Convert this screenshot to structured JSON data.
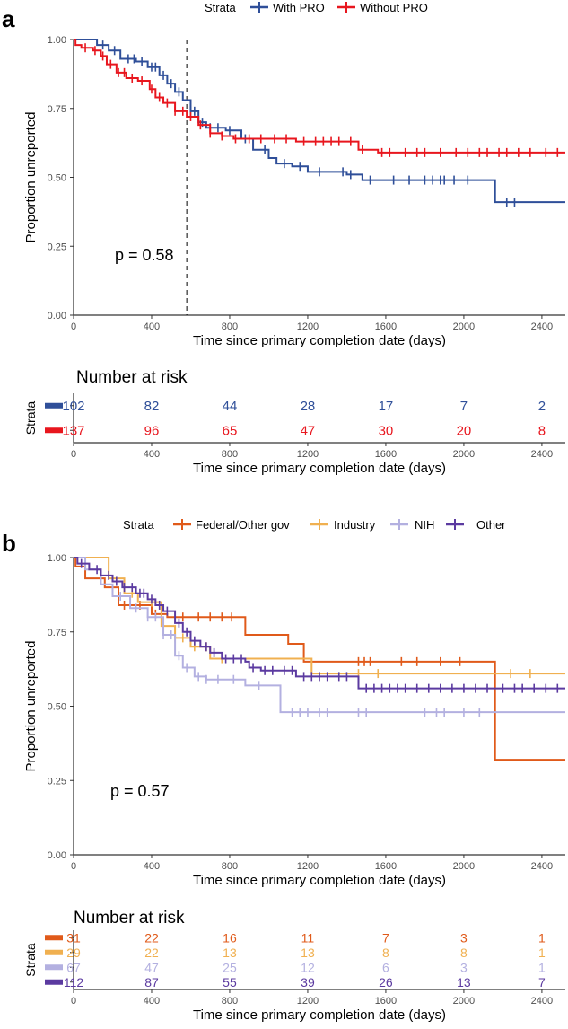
{
  "panel_a": {
    "label": "a",
    "legend": {
      "title": "Strata",
      "position": "top"
    },
    "p_value": "p = 0.58",
    "risk_title": "Number at risk",
    "risk_axis_label": "Strata",
    "chart_data": {
      "type": "line",
      "step": true,
      "xlabel": "Time since primary completion date (days)",
      "ylabel": "Proportion unreported",
      "xlim": [
        0,
        2520
      ],
      "ylim": [
        0,
        1
      ],
      "x_ticks": [
        0,
        400,
        800,
        1200,
        1600,
        2000,
        2400
      ],
      "y_ticks": [
        0,
        0.25,
        0.5,
        0.75,
        1
      ],
      "y_tick_labels": [
        "0.00",
        "0.25",
        "0.50",
        "0.75",
        "1.00"
      ],
      "reference_line_x": 580,
      "grid": false,
      "series": [
        {
          "name": "With PRO",
          "color": "#2f4f99",
          "points": [
            [
              0,
              1.0
            ],
            [
              70,
              1.0
            ],
            [
              120,
              0.98
            ],
            [
              180,
              0.96
            ],
            [
              240,
              0.93
            ],
            [
              320,
              0.92
            ],
            [
              380,
              0.9
            ],
            [
              440,
              0.87
            ],
            [
              480,
              0.84
            ],
            [
              520,
              0.81
            ],
            [
              560,
              0.78
            ],
            [
              600,
              0.74
            ],
            [
              640,
              0.7
            ],
            [
              680,
              0.68
            ],
            [
              780,
              0.67
            ],
            [
              860,
              0.64
            ],
            [
              920,
              0.6
            ],
            [
              1000,
              0.57
            ],
            [
              1040,
              0.55
            ],
            [
              1120,
              0.54
            ],
            [
              1200,
              0.52
            ],
            [
              1400,
              0.51
            ],
            [
              1480,
              0.49
            ],
            [
              2160,
              0.49
            ],
            [
              2160,
              0.41
            ],
            [
              2520,
              0.41
            ]
          ],
          "censor_x": [
            150,
            210,
            280,
            310,
            350,
            400,
            420,
            460,
            500,
            540,
            600,
            620,
            660,
            700,
            740,
            800,
            880,
            980,
            1080,
            1160,
            1260,
            1380,
            1420,
            1520,
            1640,
            1720,
            1800,
            1840,
            1880,
            1900,
            1950,
            2020,
            2220,
            2260
          ]
        },
        {
          "name": "Without PRO",
          "color": "#e8161e",
          "points": [
            [
              0,
              1.0
            ],
            [
              10,
              0.98
            ],
            [
              40,
              0.97
            ],
            [
              100,
              0.96
            ],
            [
              140,
              0.94
            ],
            [
              170,
              0.91
            ],
            [
              220,
              0.88
            ],
            [
              270,
              0.86
            ],
            [
              330,
              0.85
            ],
            [
              390,
              0.82
            ],
            [
              420,
              0.79
            ],
            [
              460,
              0.77
            ],
            [
              520,
              0.74
            ],
            [
              580,
              0.72
            ],
            [
              640,
              0.69
            ],
            [
              700,
              0.66
            ],
            [
              760,
              0.65
            ],
            [
              820,
              0.64
            ],
            [
              1140,
              0.63
            ],
            [
              1460,
              0.6
            ],
            [
              1560,
              0.59
            ],
            [
              2520,
              0.59
            ]
          ],
          "censor_x": [
            60,
            110,
            150,
            190,
            230,
            260,
            300,
            350,
            400,
            440,
            480,
            520,
            560,
            600,
            650,
            700,
            760,
            830,
            900,
            960,
            1030,
            1090,
            1180,
            1240,
            1280,
            1320,
            1360,
            1420,
            1480,
            1580,
            1620,
            1700,
            1760,
            1800,
            1880,
            1960,
            2020,
            2080,
            2120,
            2180,
            2220,
            2280,
            2340,
            2420,
            2480
          ]
        }
      ]
    },
    "risk_table": {
      "xlabel": "Time since primary completion date (days)",
      "x_ticks": [
        0,
        400,
        800,
        1200,
        1600,
        2000,
        2400
      ],
      "rows": [
        {
          "name": "With PRO",
          "color": "#2f4f99",
          "values": [
            "102",
            "82",
            "44",
            "28",
            "17",
            "7",
            "2"
          ]
        },
        {
          "name": "Without PRO",
          "color": "#e8161e",
          "values": [
            "137",
            "96",
            "65",
            "47",
            "30",
            "20",
            "8"
          ]
        }
      ]
    }
  },
  "panel_b": {
    "label": "b",
    "legend": {
      "title": "Strata",
      "position": "top"
    },
    "p_value": "p = 0.57",
    "risk_title": "Number at risk",
    "risk_axis_label": "Strata",
    "chart_data": {
      "type": "line",
      "step": true,
      "xlabel": "Time since primary completion date (days)",
      "ylabel": "Proportion unreported",
      "xlim": [
        0,
        2520
      ],
      "ylim": [
        0,
        1
      ],
      "x_ticks": [
        0,
        400,
        800,
        1200,
        1600,
        2000,
        2400
      ],
      "y_ticks": [
        0,
        0.25,
        0.5,
        0.75,
        1
      ],
      "y_tick_labels": [
        "0.00",
        "0.25",
        "0.50",
        "0.75",
        "1.00"
      ],
      "grid": false,
      "series": [
        {
          "name": "Federal/Other gov",
          "color": "#e05a1a",
          "points": [
            [
              0,
              1.0
            ],
            [
              10,
              0.97
            ],
            [
              60,
              0.93
            ],
            [
              160,
              0.9
            ],
            [
              230,
              0.84
            ],
            [
              400,
              0.81
            ],
            [
              480,
              0.8
            ],
            [
              820,
              0.8
            ],
            [
              880,
              0.74
            ],
            [
              1100,
              0.71
            ],
            [
              1180,
              0.65
            ],
            [
              2160,
              0.65
            ],
            [
              2160,
              0.32
            ],
            [
              2520,
              0.32
            ]
          ],
          "censor_x": [
            260,
            340,
            420,
            560,
            640,
            700,
            760,
            810,
            1460,
            1490,
            1520,
            1680,
            1760,
            1880,
            1980
          ]
        },
        {
          "name": "Industry",
          "color": "#f0b050",
          "points": [
            [
              0,
              1.0
            ],
            [
              180,
              1.0
            ],
            [
              180,
              0.93
            ],
            [
              260,
              0.88
            ],
            [
              330,
              0.85
            ],
            [
              450,
              0.77
            ],
            [
              520,
              0.73
            ],
            [
              600,
              0.7
            ],
            [
              700,
              0.66
            ],
            [
              900,
              0.66
            ],
            [
              1220,
              0.61
            ],
            [
              2520,
              0.61
            ]
          ],
          "censor_x": [
            300,
            400,
            460,
            520,
            560,
            620,
            680,
            760,
            1460,
            1560,
            2240,
            2340
          ]
        },
        {
          "name": "NIH",
          "color": "#b3b0e0",
          "points": [
            [
              0,
              1.0
            ],
            [
              60,
              0.96
            ],
            [
              140,
              0.91
            ],
            [
              200,
              0.87
            ],
            [
              290,
              0.83
            ],
            [
              380,
              0.8
            ],
            [
              460,
              0.74
            ],
            [
              520,
              0.67
            ],
            [
              560,
              0.63
            ],
            [
              620,
              0.6
            ],
            [
              680,
              0.59
            ],
            [
              880,
              0.57
            ],
            [
              1060,
              0.48
            ],
            [
              2520,
              0.48
            ]
          ],
          "censor_x": [
            240,
            320,
            380,
            420,
            460,
            500,
            540,
            580,
            640,
            680,
            740,
            820,
            950,
            1120,
            1160,
            1200,
            1260,
            1300,
            1460,
            1500,
            1800,
            1860,
            1900,
            2000,
            2080
          ]
        },
        {
          "name": "Other",
          "color": "#5b3aa0",
          "points": [
            [
              0,
              1.0
            ],
            [
              20,
              0.98
            ],
            [
              80,
              0.96
            ],
            [
              140,
              0.94
            ],
            [
              200,
              0.92
            ],
            [
              250,
              0.9
            ],
            [
              320,
              0.88
            ],
            [
              380,
              0.86
            ],
            [
              420,
              0.84
            ],
            [
              460,
              0.82
            ],
            [
              520,
              0.78
            ],
            [
              560,
              0.75
            ],
            [
              600,
              0.72
            ],
            [
              650,
              0.7
            ],
            [
              700,
              0.68
            ],
            [
              760,
              0.66
            ],
            [
              880,
              0.65
            ],
            [
              900,
              0.63
            ],
            [
              960,
              0.62
            ],
            [
              1140,
              0.6
            ],
            [
              1460,
              0.56
            ],
            [
              2520,
              0.56
            ]
          ],
          "censor_x": [
            40,
            120,
            180,
            220,
            260,
            300,
            340,
            360,
            400,
            440,
            480,
            540,
            580,
            620,
            680,
            720,
            780,
            820,
            860,
            920,
            980,
            1020,
            1080,
            1120,
            1180,
            1220,
            1260,
            1300,
            1360,
            1400,
            1500,
            1540,
            1580,
            1620,
            1660,
            1700,
            1760,
            1820,
            1880,
            1940,
            2000,
            2060,
            2120,
            2200,
            2260,
            2300,
            2360,
            2420,
            2480
          ]
        }
      ]
    },
    "risk_table": {
      "xlabel": "Time since primary completion date (days)",
      "x_ticks": [
        0,
        400,
        800,
        1200,
        1600,
        2000,
        2400
      ],
      "rows": [
        {
          "name": "Federal/Other gov",
          "color": "#e05a1a",
          "values": [
            "31",
            "22",
            "16",
            "11",
            "7",
            "3",
            "1"
          ]
        },
        {
          "name": "Industry",
          "color": "#f0b050",
          "values": [
            "29",
            "22",
            "13",
            "13",
            "8",
            "8",
            "1"
          ]
        },
        {
          "name": "NIH",
          "color": "#b3b0e0",
          "values": [
            "67",
            "47",
            "25",
            "12",
            "6",
            "3",
            "1"
          ]
        },
        {
          "name": "Other",
          "color": "#5b3aa0",
          "values": [
            "112",
            "87",
            "55",
            "39",
            "26",
            "13",
            "7"
          ]
        }
      ]
    }
  }
}
